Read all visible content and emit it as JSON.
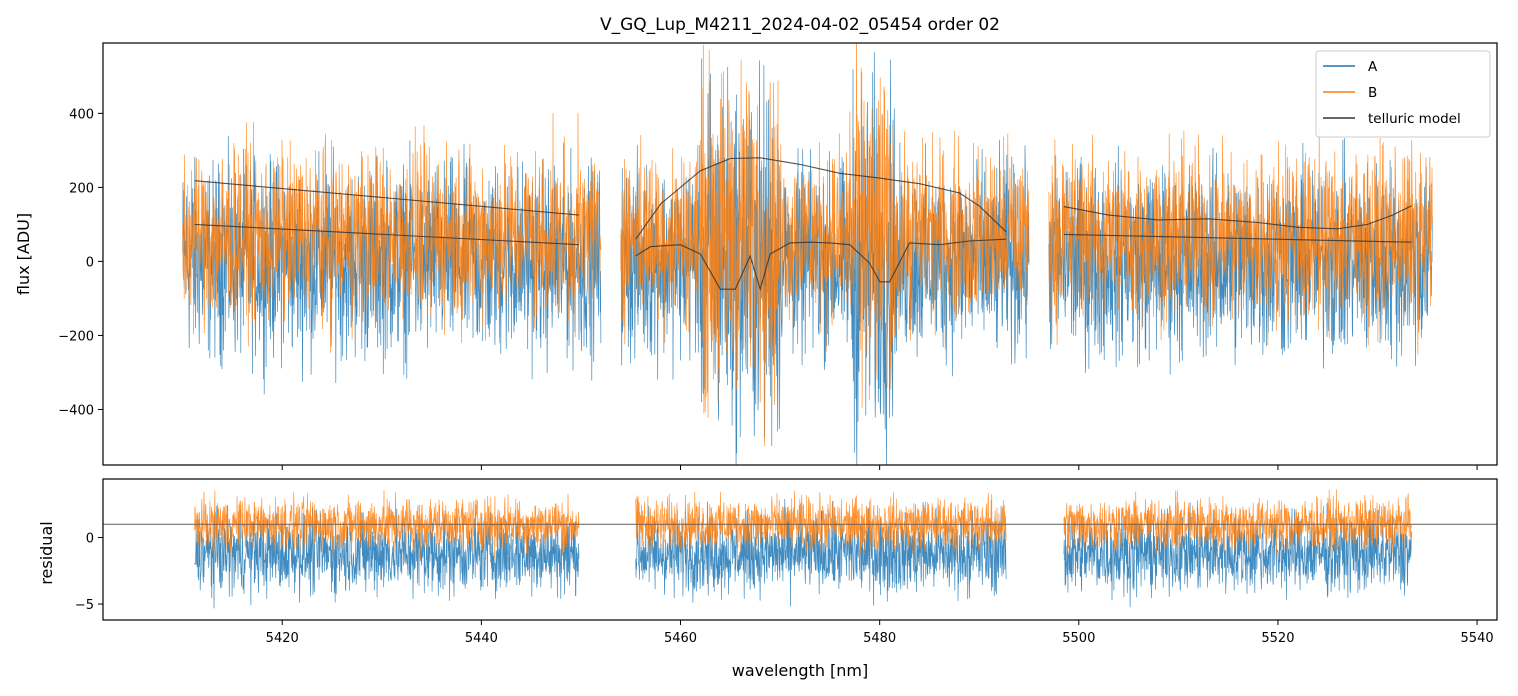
{
  "chart_data": {
    "type": "line",
    "title": "V_GQ_Lup_M4211_2024-04-02_05454  order 02",
    "xlabel": "wavelength [nm]",
    "xlim": [
      5402,
      5542
    ],
    "xticks": [
      5420,
      5440,
      5460,
      5480,
      5500,
      5520,
      5540
    ],
    "segments": [
      [
        5410,
        5452
      ],
      [
        5454,
        5495
      ],
      [
        5497,
        5535.5
      ]
    ],
    "colors": {
      "A": "#1f77b4",
      "B": "#ff7f0e",
      "telluric": "#333333",
      "refline": "#555555"
    },
    "legend": {
      "location": "top-right",
      "entries": [
        "A",
        "B",
        "telluric model"
      ]
    },
    "panels": [
      {
        "name": "spectrum",
        "ylabel": "flux [ADU]",
        "ylim": [
          -550,
          590
        ],
        "yticks": [
          -400,
          -200,
          0,
          200,
          400
        ],
        "ytick_labels": [
          "−400",
          "−200",
          "0",
          "200",
          "400"
        ],
        "series": [
          {
            "name": "A",
            "center": 0,
            "spread": 210,
            "alpha": 0.85
          },
          {
            "name": "B",
            "center": 70,
            "spread": 190,
            "alpha": 0.85
          }
        ],
        "telluric_model": [
          {
            "name": "segment-1 upper",
            "x": [
              5411.2,
              5449.8
            ],
            "y": [
              218,
              125
            ]
          },
          {
            "name": "segment-1 lower",
            "x": [
              5411.2,
              5449.8
            ],
            "y": [
              100,
              45
            ]
          },
          {
            "name": "segment-2 upper",
            "x": [
              5455.5,
              5458,
              5462,
              5465,
              5468,
              5472,
              5476,
              5480,
              5484,
              5488,
              5490,
              5492.7
            ],
            "y": [
              60,
              155,
              245,
              278,
              280,
              262,
              238,
              225,
              210,
              185,
              150,
              80
            ]
          },
          {
            "name": "segment-2 lower",
            "x": [
              5455.5,
              5457,
              5460,
              5462,
              5464,
              5465.5,
              5467,
              5468,
              5469,
              5471,
              5473,
              5475,
              5477,
              5479,
              5480,
              5481,
              5483,
              5486,
              5489,
              5492.7
            ],
            "y": [
              15,
              40,
              45,
              20,
              -75,
              -75,
              15,
              -75,
              20,
              50,
              52,
              50,
              45,
              -5,
              -55,
              -55,
              50,
              45,
              55,
              60
            ]
          },
          {
            "name": "segment-3 upper",
            "x": [
              5498.5,
              5503,
              5508,
              5513,
              5518,
              5522,
              5526,
              5529,
              5531.5,
              5533.4
            ],
            "y": [
              148,
              125,
              112,
              115,
              105,
              92,
              88,
              100,
              125,
              150
            ]
          },
          {
            "name": "segment-3 lower",
            "x": [
              5498.5,
              5533.4
            ],
            "y": [
              73,
              52
            ]
          }
        ]
      },
      {
        "name": "residual",
        "ylabel": "residual",
        "ylim": [
          -6.2,
          4.4
        ],
        "yticks": [
          -5,
          0
        ],
        "ytick_labels": [
          "−5",
          "0"
        ],
        "reference_line": 1,
        "segments": [
          [
            5411.2,
            5449.8
          ],
          [
            5455.5,
            5492.7
          ],
          [
            5498.5,
            5533.4
          ]
        ],
        "series": [
          {
            "name": "A",
            "center": -1.2,
            "spread": 2.4,
            "alpha": 0.85
          },
          {
            "name": "B",
            "center": 1.0,
            "spread": 1.6,
            "alpha": 0.85
          }
        ]
      }
    ]
  }
}
